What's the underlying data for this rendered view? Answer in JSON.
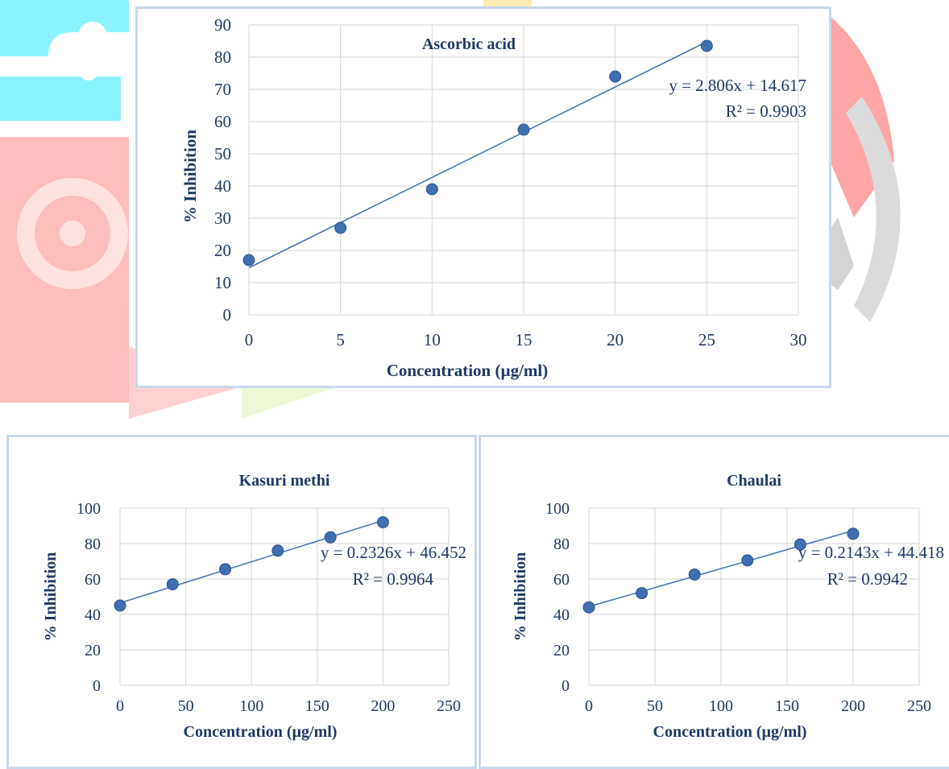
{
  "colors": {
    "accent_marker": "#3f6fb0",
    "text": "#1f3864",
    "grid": "#d6d6d6",
    "frame": "#c9d8ea"
  },
  "chart_data": [
    {
      "id": "ascorbic",
      "type": "scatter",
      "title": "Ascorbic acid",
      "xlabel": "Concentration (µg/ml)",
      "ylabel": "% Inhibition",
      "xlim": [
        0,
        30
      ],
      "ylim": [
        0,
        90
      ],
      "xticks": [
        0,
        5,
        10,
        15,
        20,
        25,
        30
      ],
      "yticks": [
        0,
        10,
        20,
        30,
        40,
        50,
        60,
        70,
        80,
        90
      ],
      "grid": true,
      "series": [
        {
          "x": [
            0,
            5,
            10,
            15,
            20,
            25
          ],
          "y": [
            17,
            27,
            39,
            57.5,
            74,
            83.5
          ]
        }
      ],
      "trendline": {
        "slope": 2.806,
        "intercept": 14.617,
        "x_range": [
          0,
          25
        ]
      },
      "equation": "y = 2.806x + 14.617",
      "r2": "R² = 0.9903"
    },
    {
      "id": "kasuri",
      "type": "scatter",
      "title": "Kasuri methi",
      "xlabel": "Concentration (µg/ml)",
      "ylabel": "% Inhibition",
      "xlim": [
        0,
        250
      ],
      "ylim": [
        0,
        100
      ],
      "xticks": [
        0,
        50,
        100,
        150,
        200,
        250
      ],
      "yticks": [
        0,
        20,
        40,
        60,
        80,
        100
      ],
      "grid": true,
      "series": [
        {
          "x": [
            0,
            40,
            80,
            120,
            160,
            200
          ],
          "y": [
            45,
            57,
            65.5,
            76,
            83.5,
            92
          ]
        }
      ],
      "trendline": {
        "slope": 0.2326,
        "intercept": 46.452,
        "x_range": [
          0,
          200
        ]
      },
      "equation": "y = 0.2326x + 46.452",
      "r2": "R² = 0.9964"
    },
    {
      "id": "chaulai",
      "type": "scatter",
      "title": "Chaulai",
      "xlabel": "Concentration (µg/ml)",
      "ylabel": "% Inhibition",
      "xlim": [
        0,
        250
      ],
      "ylim": [
        0,
        100
      ],
      "xticks": [
        0,
        50,
        100,
        150,
        200,
        250
      ],
      "yticks": [
        0,
        20,
        40,
        60,
        80,
        100
      ],
      "grid": true,
      "series": [
        {
          "x": [
            0,
            40,
            80,
            120,
            160,
            200
          ],
          "y": [
            44,
            52,
            62.5,
            70.5,
            79.5,
            85.5
          ]
        }
      ],
      "trendline": {
        "slope": 0.2143,
        "intercept": 44.418,
        "x_range": [
          0,
          200
        ]
      },
      "equation": "y = 0.2143x + 44.418",
      "r2": "R² = 0.9942"
    }
  ]
}
